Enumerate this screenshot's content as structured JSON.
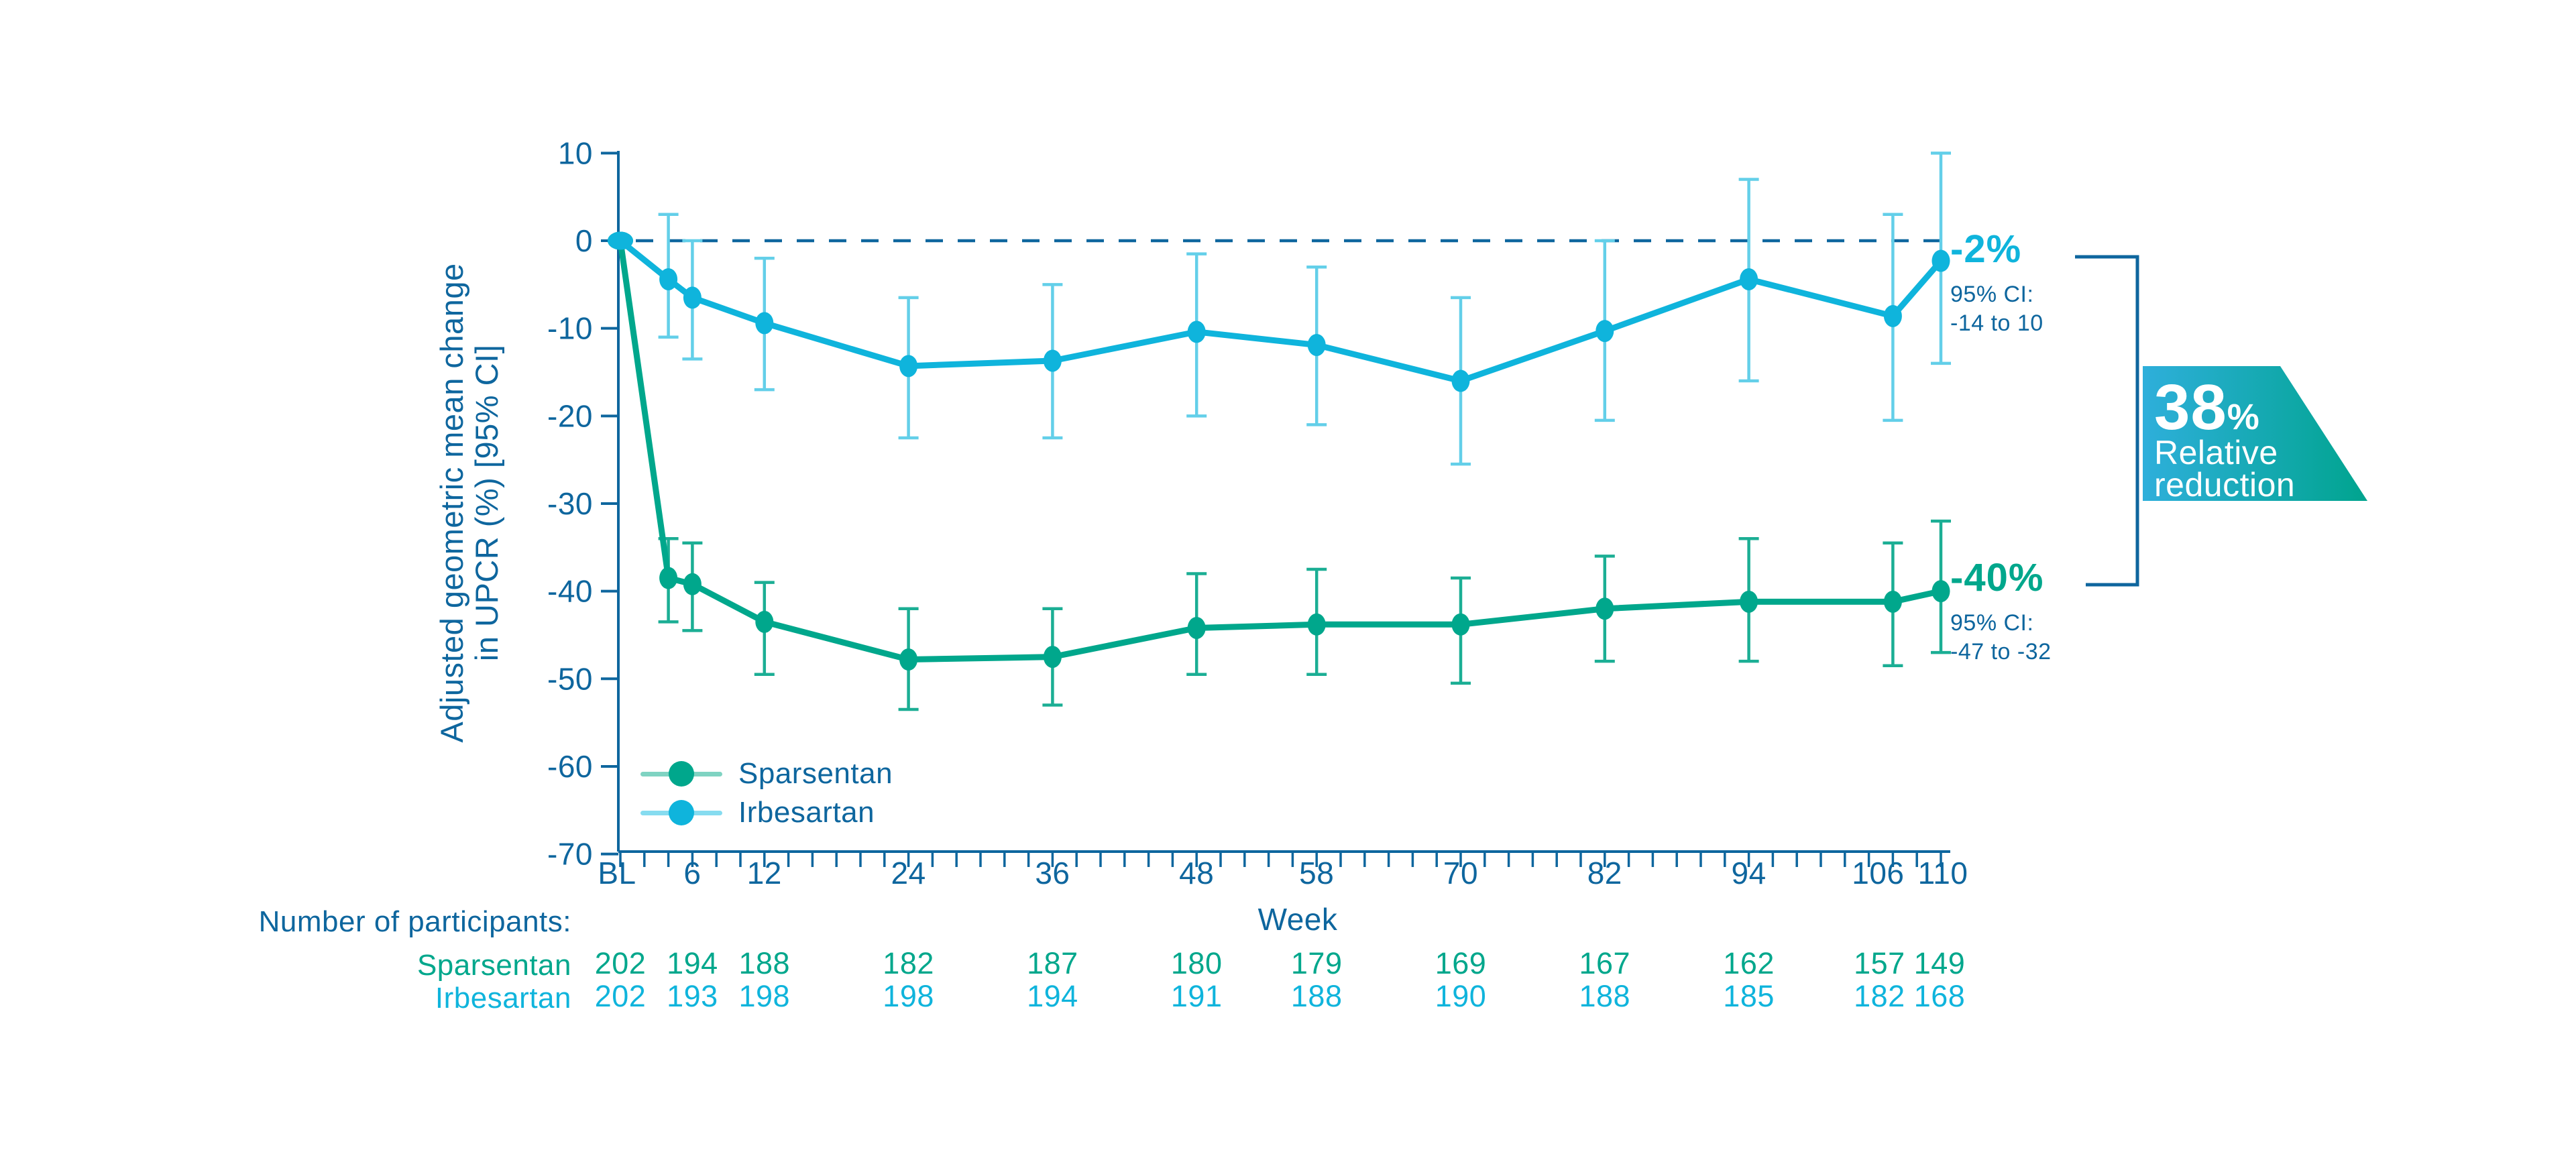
{
  "colors": {
    "dark_blue": "#0e669e",
    "sparsentan": "#00a78c",
    "sparsentan_error": "#1bae94",
    "sparsentan_light": "#7fd3c2",
    "irbesartan": "#0fb4dc",
    "irbesartan_error": "#63cfe9",
    "irbesartan_light": "#86dcf0",
    "badge_gradient_start": "#2eafdb",
    "badge_gradient_end": "#00a48e",
    "background": "#ffffff"
  },
  "chart_data": {
    "type": "line",
    "x_label": "Week",
    "y_label_line1": "Adjusted geometric mean change",
    "y_label_line2": "in UPCR (%) [95% CI]",
    "ylim": [
      -70,
      10
    ],
    "y_ticks": [
      10,
      0,
      -10,
      -20,
      -30,
      -40,
      -50,
      -60,
      -70
    ],
    "x_tick_labels": [
      {
        "label": "BL",
        "week": 0
      },
      {
        "label": "6",
        "week": 6
      },
      {
        "label": "12",
        "week": 12
      },
      {
        "label": "24",
        "week": 24
      },
      {
        "label": "36",
        "week": 36
      },
      {
        "label": "48",
        "week": 48
      },
      {
        "label": "58",
        "week": 58
      },
      {
        "label": "70",
        "week": 70
      },
      {
        "label": "82",
        "week": 82
      },
      {
        "label": "94",
        "week": 94
      },
      {
        "label": "106",
        "week": 106
      },
      {
        "label": "110",
        "week": 110
      }
    ],
    "weeks": [
      0,
      4,
      6,
      12,
      24,
      36,
      48,
      58,
      70,
      82,
      94,
      106,
      110
    ],
    "zero_reference_line": 0,
    "grid": false,
    "legend_position": "lower-left",
    "series": [
      {
        "name": "Sparsentan",
        "values": [
          0,
          -38.5,
          -39.2,
          -43.5,
          -47.8,
          -47.5,
          -44.2,
          -43.8,
          -43.8,
          -42,
          -41.2,
          -41.2,
          -40
        ],
        "ci_low": [
          null,
          -43.5,
          -44.5,
          -49.5,
          -53.5,
          -53,
          -49.5,
          -49.5,
          -50.5,
          -48,
          -48,
          -48.5,
          -47
        ],
        "ci_high": [
          null,
          -34,
          -34.5,
          -39,
          -42,
          -42,
          -38,
          -37.5,
          -38.5,
          -36,
          -34,
          -34.5,
          -32
        ]
      },
      {
        "name": "Irbesartan",
        "values": [
          0,
          -4.4,
          -6.5,
          -9.4,
          -14.3,
          -13.7,
          -10.4,
          -11.9,
          -16,
          -10.3,
          -4.4,
          -8.6,
          -2.3
        ],
        "ci_low": [
          null,
          -11,
          -13.5,
          -17,
          -22.5,
          -22.5,
          -20,
          -21,
          -25.5,
          -20.5,
          -16,
          -20.5,
          -14
        ],
        "ci_high": [
          null,
          3,
          0,
          -2,
          -6.5,
          -5,
          -1.5,
          -3,
          -6.5,
          0,
          7,
          3,
          10
        ]
      }
    ],
    "endpoints": {
      "irbesartan": {
        "value_label": "-2%",
        "ci_label": "95% CI:",
        "ci_range": "-14 to 10"
      },
      "sparsentan": {
        "value_label": "-40%",
        "ci_label": "95% CI:",
        "ci_range": "-47 to -32"
      }
    },
    "relative_reduction_badge": {
      "value": "38",
      "unit": "%",
      "label_line1": "Relative",
      "label_line2": "reduction"
    }
  },
  "legend": {
    "items": [
      {
        "label": "Sparsentan"
      },
      {
        "label": "Irbesartan"
      }
    ]
  },
  "participants": {
    "title": "Number of participants:",
    "rows": [
      {
        "label": "Sparsentan",
        "counts": [
          202,
          194,
          188,
          182,
          187,
          180,
          179,
          169,
          167,
          162,
          157,
          149
        ]
      },
      {
        "label": "Irbesartan",
        "counts": [
          202,
          193,
          198,
          198,
          194,
          191,
          188,
          190,
          188,
          185,
          182,
          168
        ]
      }
    ]
  }
}
